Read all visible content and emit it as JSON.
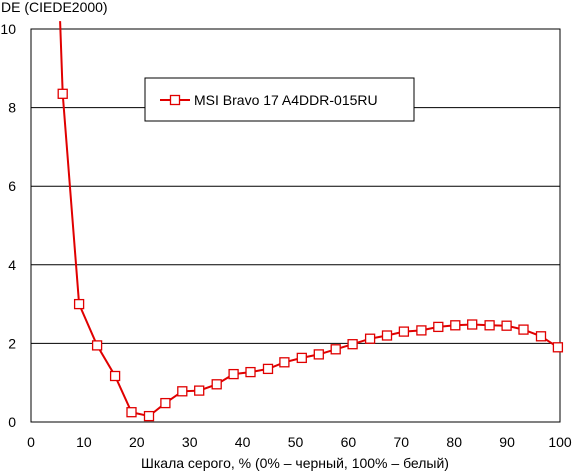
{
  "chart_data": {
    "type": "line",
    "title": "",
    "ylabel": "DE (CIEDE2000)",
    "xlabel": "Шкала серого, % (0% – черный, 100% – белый)",
    "xlim": [
      0,
      100
    ],
    "ylim": [
      0,
      10
    ],
    "x_ticks": [
      "0",
      "10",
      "20",
      "30",
      "40",
      "50",
      "60",
      "70",
      "80",
      "90",
      "100"
    ],
    "y_ticks": [
      "0",
      "2",
      "4",
      "6",
      "8",
      "10"
    ],
    "grid": "horizontal",
    "legend_position": "top-center",
    "series": [
      {
        "name": "MSI Bravo 17 A4DDR-015RU",
        "color": "#e00000",
        "marker": "square",
        "x": [
          6.0,
          9.1,
          12.5,
          15.9,
          19.0,
          22.3,
          25.4,
          28.6,
          31.8,
          35.1,
          38.3,
          41.5,
          44.8,
          47.9,
          51.2,
          54.4,
          57.6,
          60.8,
          64.1,
          67.3,
          70.5,
          73.8,
          77.0,
          80.2,
          83.4,
          86.7,
          89.9,
          93.1,
          96.4,
          99.6
        ],
        "y": [
          8.35,
          3.0,
          1.95,
          1.17,
          0.25,
          0.15,
          0.48,
          0.78,
          0.8,
          0.96,
          1.22,
          1.27,
          1.35,
          1.52,
          1.63,
          1.72,
          1.85,
          1.98,
          2.12,
          2.2,
          2.3,
          2.33,
          2.42,
          2.46,
          2.48,
          2.46,
          2.45,
          2.35,
          2.18,
          1.9
        ],
        "line_start": [
          5.5,
          10.2
        ]
      }
    ]
  }
}
